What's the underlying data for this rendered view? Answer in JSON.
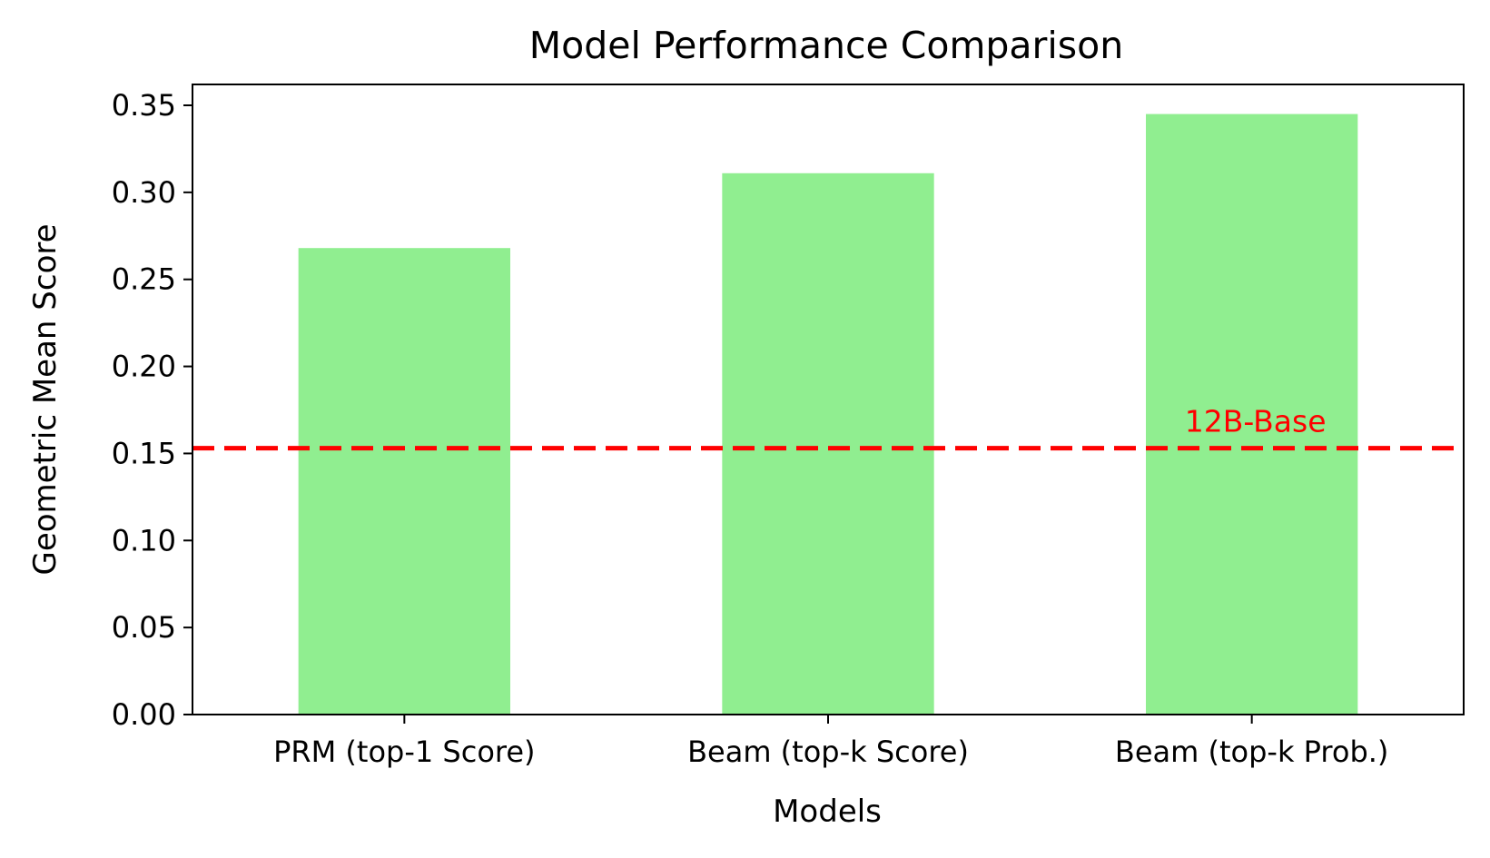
{
  "chart_data": {
    "type": "bar",
    "title": "Model Performance Comparison",
    "xlabel": "Models",
    "ylabel": "Geometric Mean Score",
    "categories": [
      "PRM (top-1 Score)",
      "Beam (top-k Score)",
      "Beam (top-k Prob.)"
    ],
    "values": [
      0.268,
      0.311,
      0.345
    ],
    "ylim": [
      0,
      0.362
    ],
    "yticks": [
      0.0,
      0.05,
      0.1,
      0.15,
      0.2,
      0.25,
      0.3,
      0.35
    ],
    "ytick_labels": [
      "0.00",
      "0.05",
      "0.10",
      "0.15",
      "0.20",
      "0.25",
      "0.30",
      "0.35"
    ],
    "bar_color": "#90ee90",
    "grid": false,
    "legend": false,
    "reference_line": {
      "value": 0.153,
      "label": "12B-Base",
      "color": "#ff0000",
      "style": "dashed"
    }
  }
}
